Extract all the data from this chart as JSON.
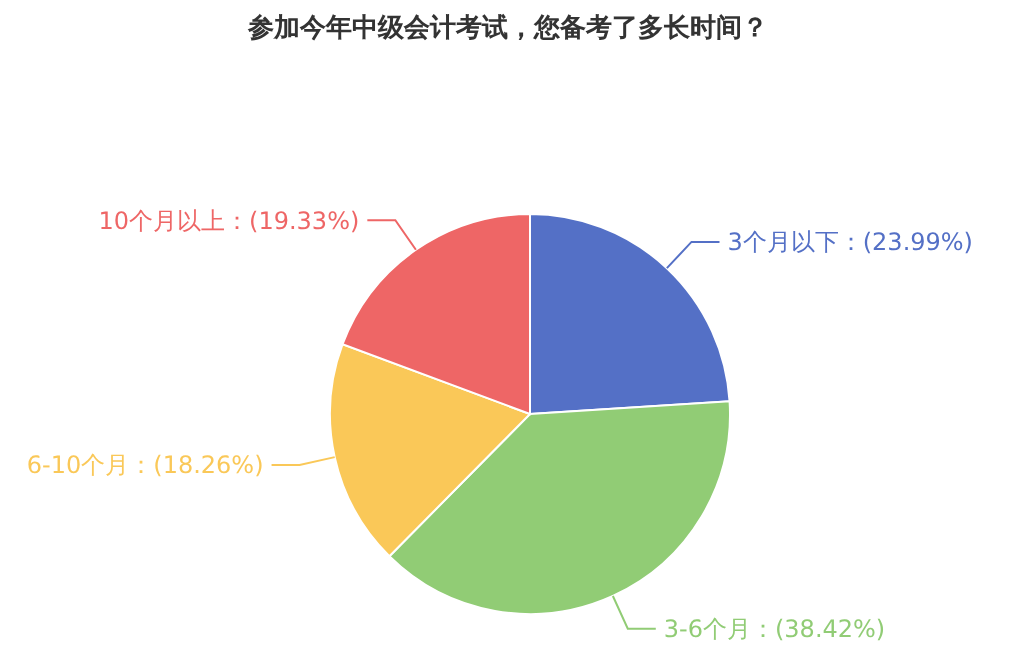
{
  "chart_data": {
    "type": "pie",
    "title": "参加今年中级会计考试，您备考了多长时间？",
    "categories": [
      "3个月以下",
      "3-6个月",
      "6-10个月",
      "10个月以上"
    ],
    "values": [
      23.99,
      38.42,
      18.26,
      19.33
    ],
    "value_labels": [
      "(23.99%)",
      "(38.42%)",
      "(18.26%)",
      "(19.33%)"
    ],
    "colors": [
      "#5470c6",
      "#91cc75",
      "#fac858",
      "#ee6666"
    ]
  }
}
